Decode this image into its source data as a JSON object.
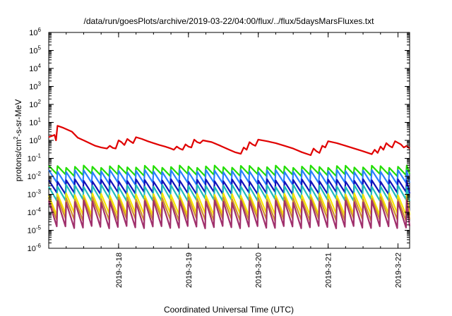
{
  "chart_data": {
    "type": "line",
    "title": "/data/run/goesPlots/archive/2019-03-22/04:00/flux/../flux/5daysMarsFluxes.txt",
    "xlabel": "Coordinated Universal Time (UTC)",
    "ylabel_main": "protons/cm",
    "ylabel_sup": "2",
    "ylabel_tail": "-s-sr-MeV",
    "x_range": [
      "2019-03-17T00:00",
      "2019-03-22T04:00"
    ],
    "x_ticks": [
      {
        "label": "2019-3-18",
        "date": "2019-03-18"
      },
      {
        "label": "2019-3-19",
        "date": "2019-03-19"
      },
      {
        "label": "2019-3-20",
        "date": "2019-03-20"
      },
      {
        "label": "2019-3-21",
        "date": "2019-03-21"
      },
      {
        "label": "2019-3-22",
        "date": "2019-03-22"
      }
    ],
    "y_scale": "log",
    "y_range": [
      1e-06,
      1000000.0
    ],
    "y_ticks": [
      {
        "base": "10",
        "exp": "6",
        "value": 1000000.0
      },
      {
        "base": "10",
        "exp": "5",
        "value": 100000.0
      },
      {
        "base": "10",
        "exp": "4",
        "value": 10000.0
      },
      {
        "base": "10",
        "exp": "3",
        "value": 1000.0
      },
      {
        "base": "10",
        "exp": "2",
        "value": 100.0
      },
      {
        "base": "10",
        "exp": "1",
        "value": 10.0
      },
      {
        "base": "10",
        "exp": "0",
        "value": 1.0
      },
      {
        "base": "10",
        "exp": "-1",
        "value": 0.1
      },
      {
        "base": "10",
        "exp": "-2",
        "value": 0.01
      },
      {
        "base": "10",
        "exp": "-3",
        "value": 0.001
      },
      {
        "base": "10",
        "exp": "-4",
        "value": 0.0001
      },
      {
        "base": "10",
        "exp": "-5",
        "value": 1e-05
      },
      {
        "base": "10",
        "exp": "-6",
        "value": 1e-06
      }
    ],
    "grid": false,
    "legend": "none",
    "series": [
      {
        "color": "#e00000",
        "points": [
          [
            "2019-03-17T00:00",
            1.5
          ],
          [
            "2019-03-17T02:00",
            2.0
          ],
          [
            "2019-03-17T02:30",
            1.0
          ],
          [
            "2019-03-17T03:00",
            6.5
          ],
          [
            "2019-03-17T05:00",
            5.0
          ],
          [
            "2019-03-17T08:00",
            3.0
          ],
          [
            "2019-03-17T10:00",
            1.4
          ],
          [
            "2019-03-17T12:00",
            1.0
          ],
          [
            "2019-03-17T14:00",
            0.7
          ],
          [
            "2019-03-17T16:00",
            0.5
          ],
          [
            "2019-03-17T18:00",
            0.4
          ],
          [
            "2019-03-17T20:00",
            0.35
          ],
          [
            "2019-03-17T21:00",
            0.5
          ],
          [
            "2019-03-17T22:00",
            0.38
          ],
          [
            "2019-03-17T23:00",
            0.35
          ],
          [
            "2019-03-18T00:00",
            1.0
          ],
          [
            "2019-03-18T01:00",
            0.8
          ],
          [
            "2019-03-18T02:00",
            0.55
          ],
          [
            "2019-03-18T03:00",
            1.2
          ],
          [
            "2019-03-18T04:00",
            0.9
          ],
          [
            "2019-03-18T05:00",
            0.7
          ],
          [
            "2019-03-18T06:00",
            1.5
          ],
          [
            "2019-03-18T08:00",
            1.2
          ],
          [
            "2019-03-18T10:00",
            0.9
          ],
          [
            "2019-03-18T12:00",
            0.7
          ],
          [
            "2019-03-18T14:00",
            0.55
          ],
          [
            "2019-03-18T16:00",
            0.45
          ],
          [
            "2019-03-18T18:00",
            0.35
          ],
          [
            "2019-03-18T19:00",
            0.3
          ],
          [
            "2019-03-18T20:00",
            0.45
          ],
          [
            "2019-03-18T21:00",
            0.35
          ],
          [
            "2019-03-18T22:00",
            0.3
          ],
          [
            "2019-03-18T23:00",
            0.6
          ],
          [
            "2019-03-19T00:00",
            0.45
          ],
          [
            "2019-03-19T01:00",
            0.4
          ],
          [
            "2019-03-19T02:00",
            1.1
          ],
          [
            "2019-03-19T03:00",
            0.8
          ],
          [
            "2019-03-19T04:00",
            0.7
          ],
          [
            "2019-03-19T05:00",
            1.0
          ],
          [
            "2019-03-19T08:00",
            0.8
          ],
          [
            "2019-03-19T11:00",
            0.5
          ],
          [
            "2019-03-19T14:00",
            0.3
          ],
          [
            "2019-03-19T16:00",
            0.22
          ],
          [
            "2019-03-19T18:00",
            0.18
          ],
          [
            "2019-03-19T19:00",
            0.4
          ],
          [
            "2019-03-19T20:00",
            0.3
          ],
          [
            "2019-03-19T21:00",
            0.8
          ],
          [
            "2019-03-19T22:00",
            0.6
          ],
          [
            "2019-03-19T23:00",
            0.5
          ],
          [
            "2019-03-20T00:00",
            1.1
          ],
          [
            "2019-03-20T03:00",
            0.9
          ],
          [
            "2019-03-20T06:00",
            0.7
          ],
          [
            "2019-03-20T09:00",
            0.5
          ],
          [
            "2019-03-20T12:00",
            0.35
          ],
          [
            "2019-03-20T15:00",
            0.22
          ],
          [
            "2019-03-20T18:00",
            0.15
          ],
          [
            "2019-03-20T19:00",
            0.35
          ],
          [
            "2019-03-20T20:00",
            0.25
          ],
          [
            "2019-03-20T21:00",
            0.2
          ],
          [
            "2019-03-20T22:00",
            0.5
          ],
          [
            "2019-03-20T23:00",
            0.4
          ],
          [
            "2019-03-21T00:00",
            0.9
          ],
          [
            "2019-03-21T03:00",
            0.7
          ],
          [
            "2019-03-21T06:00",
            0.5
          ],
          [
            "2019-03-21T09:00",
            0.35
          ],
          [
            "2019-03-21T12:00",
            0.25
          ],
          [
            "2019-03-21T15:00",
            0.17
          ],
          [
            "2019-03-21T16:00",
            0.3
          ],
          [
            "2019-03-21T17:00",
            0.2
          ],
          [
            "2019-03-21T18:00",
            0.45
          ],
          [
            "2019-03-21T19:00",
            0.3
          ],
          [
            "2019-03-21T20:00",
            0.7
          ],
          [
            "2019-03-21T21:00",
            0.5
          ],
          [
            "2019-03-21T22:00",
            0.4
          ],
          [
            "2019-03-21T23:00",
            0.9
          ],
          [
            "2019-03-22T01:00",
            0.6
          ],
          [
            "2019-03-22T02:00",
            0.4
          ],
          [
            "2019-03-22T03:00",
            0.5
          ],
          [
            "2019-03-22T04:00",
            0.35
          ]
        ]
      },
      {
        "color": "#22dd00",
        "pattern": {
          "high": 0.035,
          "low": 0.012
        }
      },
      {
        "color": "#2a7fff",
        "pattern": {
          "high": 0.02,
          "low": 0.004
        }
      },
      {
        "color": "#1111bb",
        "pattern": {
          "high": 0.006,
          "low": 0.0012
        }
      },
      {
        "color": "#20bbbb",
        "pattern": {
          "high": 0.003,
          "low": 0.0005
        }
      },
      {
        "color": "#f5e400",
        "pattern": {
          "high": 0.001,
          "low": 8e-05
        }
      },
      {
        "color": "#d09030",
        "pattern": {
          "high": 0.0006,
          "low": 4e-05
        }
      },
      {
        "color": "#a0306c",
        "pattern": {
          "high": 0.0004,
          "low": 1.5e-05
        }
      }
    ],
    "oscillation_period_hours": 3
  }
}
